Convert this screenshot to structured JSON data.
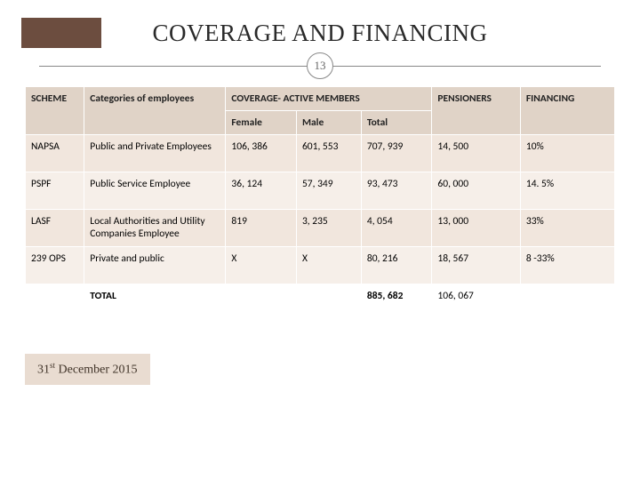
{
  "title": "COVERAGE AND FINANCING",
  "slide_number": "13",
  "colors": {
    "accent_bar": "#6c4d3f",
    "header_bg": "#e0d3c7",
    "rowA_bg": "#f1e6dd",
    "rowB_bg": "#f6efe9",
    "footnote_bg": "#e9dcd1",
    "footnote_text": "#403328",
    "divider": "#888888",
    "background": "#ffffff"
  },
  "table": {
    "columns": {
      "scheme": "SCHEME",
      "categories": "Categories of employees",
      "coverage": "COVERAGE- ACTIVE MEMBERS",
      "female": "Female",
      "male": "Male",
      "total": "Total",
      "pensioners": "PENSIONERS",
      "financing": "FINANCING"
    },
    "rows": [
      {
        "scheme": "NAPSA",
        "category": "Public and Private Employees",
        "female": "106, 386",
        "male": "601, 553",
        "total": "707, 939",
        "pensioners": "14, 500",
        "financing": "10%"
      },
      {
        "scheme": "PSPF",
        "category": "Public Service Employee",
        "female": "36, 124",
        "male": "57, 349",
        "total": "93, 473",
        "pensioners": "60, 000",
        "financing": "14. 5%"
      },
      {
        "scheme": "LASF",
        "category": "Local Authorities and Utility Companies Employee",
        "female": "819",
        "male": "3, 235",
        "total": "4, 054",
        "pensioners": "13, 000",
        "financing": "33%"
      },
      {
        "scheme": "239 OPS",
        "category": "Private and public",
        "female": "X",
        "male": "X",
        "total": "80, 216",
        "pensioners": "18, 567",
        "financing": "8 -33%"
      }
    ],
    "total": {
      "label": "TOTAL",
      "total": "885, 682",
      "pensioners": "106, 067"
    }
  },
  "footnote": {
    "day": "31",
    "ord": "st",
    "rest": " December 2015"
  }
}
